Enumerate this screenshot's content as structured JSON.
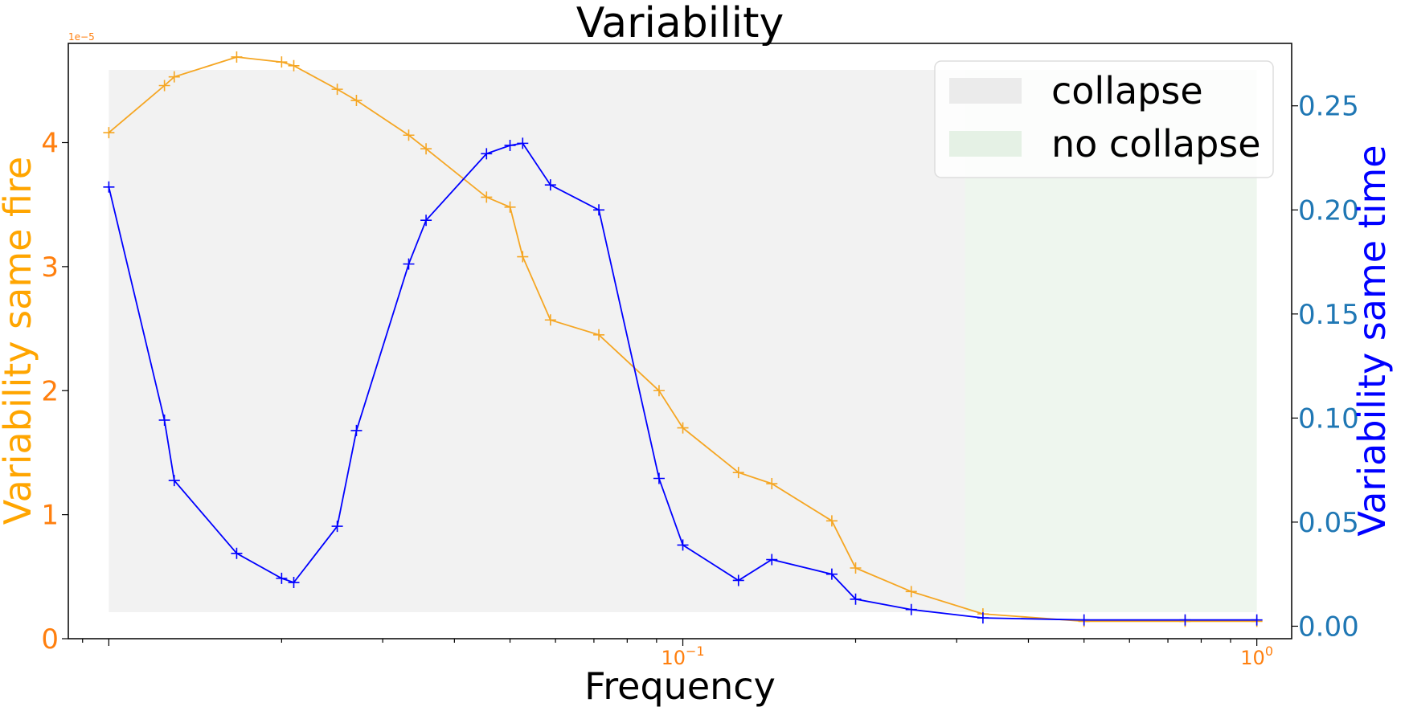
{
  "chart_data": {
    "type": "line",
    "title": "Variability",
    "xlabel": "Frequency",
    "xscale": "log",
    "xlim": [
      0.0085,
      1.15
    ],
    "x_ticks": [
      {
        "value": 0.1,
        "base": "10",
        "exp": "−1"
      },
      {
        "value": 1.0,
        "base": "10",
        "exp": "0"
      }
    ],
    "ylabel_left": "Variability same fire",
    "ylabel_left_color": "#ffa500",
    "left_scale_text": "1e−5",
    "ylim_left": [
      0,
      4.8
    ],
    "left_ticks": [
      "0",
      "1",
      "2",
      "3",
      "4"
    ],
    "ylabel_right": "Variability same time",
    "ylabel_right_color": "#0000ff",
    "ylim_right": [
      -0.006,
      0.28
    ],
    "right_ticks": [
      "0.00",
      "0.05",
      "0.10",
      "0.15",
      "0.20",
      "0.25"
    ],
    "grid": false,
    "legend_position": "upper right",
    "regions": [
      {
        "label": "collapse",
        "x": [
          0.01,
          0.31
        ],
        "color": "#d9d9d9"
      },
      {
        "label": "no collapse",
        "x": [
          0.31,
          1.0
        ],
        "color": "#cde6cd"
      }
    ],
    "series": [
      {
        "axis": "left",
        "color": "#f5a623",
        "marker": "+",
        "x": [
          0.01,
          0.0125,
          0.013,
          0.0167,
          0.02,
          0.021,
          0.025,
          0.027,
          0.0333,
          0.0357,
          0.0455,
          0.05,
          0.0526,
          0.0588,
          0.0714,
          0.0909,
          0.1,
          0.125,
          0.1429,
          0.1818,
          0.2,
          0.25,
          0.3333,
          0.5,
          0.75,
          1.0
        ],
        "values": [
          4.08,
          4.46,
          4.53,
          4.69,
          4.65,
          4.62,
          4.43,
          4.34,
          4.06,
          3.95,
          3.56,
          3.48,
          3.08,
          2.57,
          2.45,
          2.0,
          1.7,
          1.34,
          1.25,
          0.95,
          0.57,
          0.38,
          0.2,
          0.14,
          0.14,
          0.14
        ]
      },
      {
        "axis": "right",
        "color": "#0000ff",
        "marker": "+",
        "x": [
          0.01,
          0.0125,
          0.013,
          0.0167,
          0.02,
          0.021,
          0.025,
          0.027,
          0.0333,
          0.0357,
          0.0455,
          0.05,
          0.0526,
          0.0588,
          0.0714,
          0.0909,
          0.1,
          0.125,
          0.1429,
          0.1818,
          0.2,
          0.25,
          0.3333,
          0.5,
          0.75,
          1.0
        ],
        "values": [
          0.211,
          0.099,
          0.07,
          0.035,
          0.023,
          0.021,
          0.048,
          0.094,
          0.174,
          0.195,
          0.227,
          0.231,
          0.232,
          0.212,
          0.2,
          0.071,
          0.039,
          0.022,
          0.032,
          0.025,
          0.013,
          0.008,
          0.004,
          0.003,
          0.003,
          0.003
        ]
      }
    ]
  }
}
